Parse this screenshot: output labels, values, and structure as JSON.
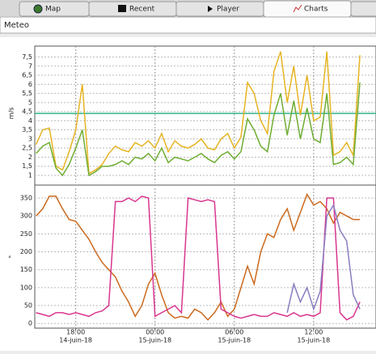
{
  "tabs": [
    {
      "label": "Map"
    },
    {
      "label": "Recent"
    },
    {
      "label": "Player"
    },
    {
      "label": "Charts"
    }
  ],
  "field": {
    "value": "Meteo"
  },
  "chart_data": [
    {
      "type": "line",
      "ylabel": "m/s",
      "x": [
        15,
        15.5,
        16,
        16.5,
        17,
        17.5,
        18,
        18.5,
        19,
        19.5,
        20,
        20.5,
        21,
        21.5,
        22,
        22.5,
        23,
        23.5,
        24,
        24.5,
        25,
        25.5,
        26,
        26.5,
        27,
        27.5,
        28,
        28.5,
        29,
        29.5,
        30,
        30.5,
        31,
        31.5,
        32,
        32.5,
        33,
        33.5,
        34,
        34.5,
        35,
        35.5,
        36,
        36.5,
        37,
        37.5,
        38,
        38.5,
        39,
        39.5
      ],
      "xlim": [
        14.9,
        40.72
      ],
      "xticks": [
        {
          "value": 18,
          "label": "18:00"
        },
        {
          "value": 24,
          "label": "00:00"
        },
        {
          "value": 30,
          "label": "06:00"
        },
        {
          "value": 36,
          "label": "12:00"
        }
      ],
      "ylim": [
        0.6,
        8.1
      ],
      "yticks": [
        1,
        {
          "value": 1.5,
          "label": "1,5"
        },
        2,
        {
          "value": 2.5,
          "label": "2,5"
        },
        3,
        {
          "value": 3.5,
          "label": "3,5"
        },
        4,
        {
          "value": 4.5,
          "label": "4,5"
        },
        5,
        {
          "value": 5.5,
          "label": "5,5"
        },
        6,
        {
          "value": 6.5,
          "label": "6,5"
        },
        7,
        {
          "value": 7.5,
          "label": "7,5"
        }
      ],
      "grid": true,
      "hlines": [
        {
          "value": 4.4,
          "color": "#2fb58a"
        }
      ],
      "series": [
        {
          "color": "#e6b422",
          "values": [
            2.7,
            3.5,
            3.6,
            1.5,
            1.3,
            2.3,
            3.5,
            6.0,
            1.1,
            1.3,
            1.6,
            2.2,
            2.6,
            2.4,
            2.3,
            2.8,
            2.6,
            2.9,
            2.5,
            3.3,
            2.3,
            2.9,
            2.6,
            2.5,
            2.7,
            3.0,
            2.5,
            2.4,
            3.0,
            3.3,
            2.5,
            3.1,
            6.1,
            5.5,
            4.0,
            3.3,
            6.7,
            7.8,
            5.0,
            7.0,
            4.3,
            6.5,
            4.0,
            4.2,
            7.8,
            2.1,
            2.3,
            2.8,
            2.1,
            7.6
          ]
        },
        {
          "color": "#6fad32",
          "values": [
            2.2,
            2.6,
            2.8,
            1.4,
            1.0,
            1.6,
            2.5,
            3.5,
            1.0,
            1.2,
            1.5,
            1.5,
            1.6,
            1.8,
            1.6,
            2.0,
            1.9,
            2.2,
            1.8,
            2.5,
            1.7,
            2.0,
            1.9,
            1.8,
            2.0,
            2.2,
            1.9,
            1.7,
            2.1,
            2.3,
            1.9,
            2.3,
            4.1,
            3.5,
            2.6,
            2.3,
            4.3,
            5.5,
            3.2,
            5.1,
            3.0,
            4.7,
            3.0,
            2.8,
            5.5,
            1.6,
            1.7,
            2.0,
            1.6,
            6.1
          ]
        }
      ]
    },
    {
      "type": "line",
      "ylabel": "°",
      "x": [
        15,
        15.5,
        16,
        16.5,
        17,
        17.5,
        18,
        18.5,
        19,
        19.5,
        20,
        20.5,
        21,
        21.5,
        22,
        22.5,
        23,
        23.5,
        24,
        24.5,
        25,
        25.5,
        26,
        26.5,
        27,
        27.5,
        28,
        28.5,
        29,
        29.5,
        30,
        30.5,
        31,
        31.5,
        32,
        32.5,
        33,
        33.5,
        34,
        34.5,
        35,
        35.5,
        36,
        36.5,
        37,
        37.5,
        38,
        38.5,
        39,
        39.5
      ],
      "xlim": [
        14.9,
        40.72
      ],
      "xticks": [
        {
          "value": 18,
          "label": "18:00",
          "date": "14-juin-18"
        },
        {
          "value": 24,
          "label": "00:00",
          "date": "15-juin-18"
        },
        {
          "value": 30,
          "label": "06:00",
          "date": "15-juin-18"
        },
        {
          "value": 36,
          "label": "12:00",
          "date": "15-juin-18"
        }
      ],
      "ylim": [
        -13,
        377
      ],
      "yticks": [
        0,
        50,
        100,
        150,
        200,
        250,
        300,
        350
      ],
      "grid": true,
      "series": [
        {
          "color": "#cc6a1e",
          "values": [
            300,
            320,
            355,
            355,
            320,
            290,
            285,
            260,
            235,
            200,
            170,
            150,
            130,
            90,
            60,
            20,
            50,
            110,
            140,
            80,
            30,
            15,
            20,
            15,
            40,
            30,
            10,
            30,
            60,
            20,
            40,
            100,
            160,
            110,
            200,
            250,
            240,
            290,
            320,
            260,
            310,
            360,
            330,
            340,
            320,
            280,
            310,
            300,
            290,
            290
          ]
        },
        {
          "color": "#d9368f",
          "values": [
            30,
            25,
            20,
            30,
            30,
            25,
            30,
            25,
            20,
            30,
            35,
            50,
            340,
            340,
            350,
            340,
            355,
            350,
            20,
            30,
            40,
            50,
            30,
            350,
            345,
            340,
            345,
            340,
            40,
            30,
            20,
            15,
            20,
            25,
            20,
            20,
            30,
            25,
            20,
            30,
            20,
            25,
            20,
            30,
            350,
            350,
            30,
            10,
            20,
            60
          ]
        },
        {
          "color": "#8a7cc0",
          "values": [
            null,
            null,
            null,
            null,
            null,
            null,
            null,
            null,
            null,
            null,
            null,
            null,
            null,
            null,
            null,
            null,
            null,
            null,
            null,
            null,
            null,
            null,
            null,
            null,
            null,
            null,
            null,
            null,
            null,
            null,
            null,
            null,
            null,
            null,
            null,
            null,
            null,
            null,
            30,
            110,
            60,
            100,
            40,
            90,
            300,
            330,
            260,
            230,
            80,
            40
          ]
        }
      ]
    }
  ]
}
